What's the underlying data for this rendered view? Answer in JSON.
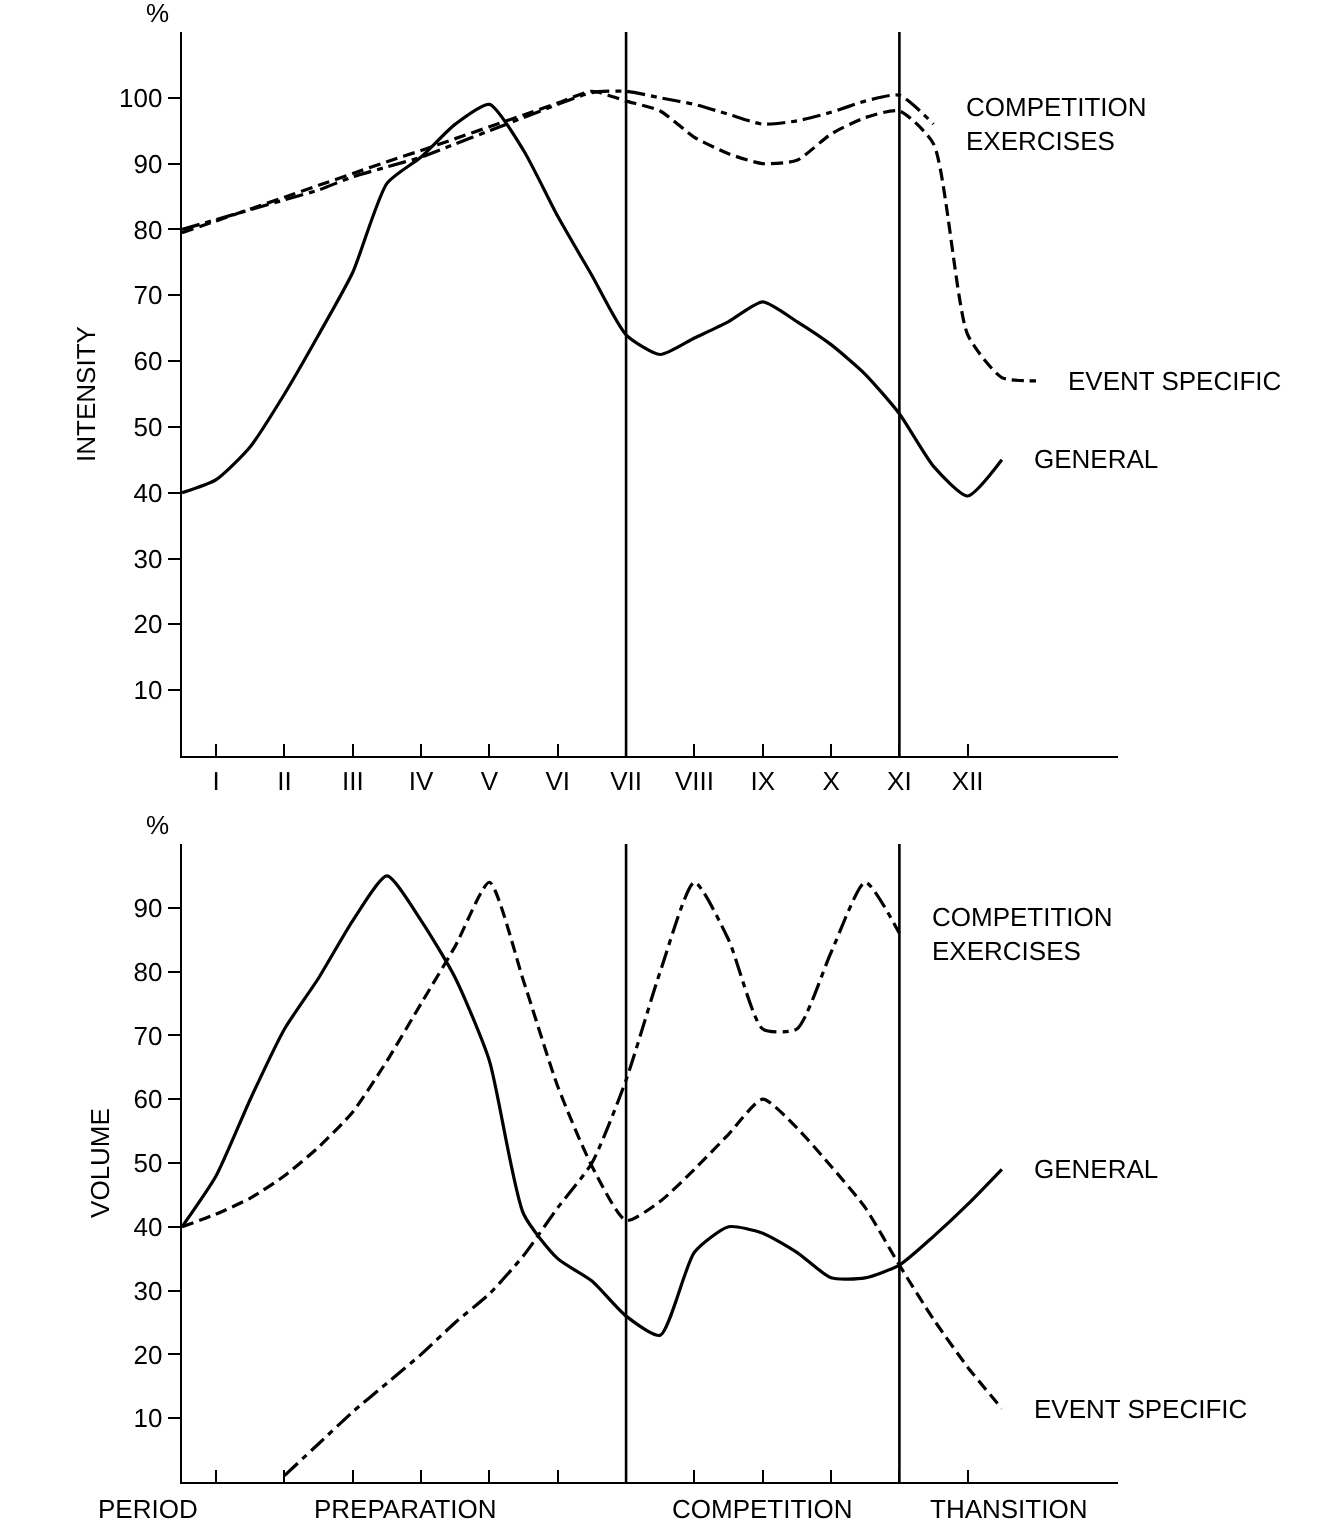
{
  "chart_data": [
    {
      "type": "line",
      "ylabel": "INTENSITY",
      "annotations": [
        "%"
      ],
      "ylim": [
        0,
        110
      ],
      "categories": [
        null,
        "I",
        null,
        "II",
        null,
        "III",
        null,
        "IV",
        null,
        "V",
        null,
        "VI",
        null,
        "VII",
        null,
        "VIII",
        null,
        "IX",
        null,
        "X",
        null,
        "XI",
        null,
        "XII",
        null,
        null,
        null,
        null
      ],
      "yticks": [
        10,
        20,
        30,
        40,
        50,
        60,
        70,
        80,
        90,
        100
      ],
      "grid": false,
      "legend": false,
      "marker": "none",
      "ref_lines": [
        {
          "axis": "x",
          "value": "VII",
          "color": "#000000"
        },
        {
          "axis": "x",
          "value": "XI",
          "color": "#000000"
        }
      ],
      "series": [
        {
          "name": "COMPETITION EXERCISES",
          "color": "#000000",
          "line_style": "dashdot",
          "values": [
            80,
            81.5,
            83,
            84.5,
            86,
            88,
            89.5,
            91,
            93,
            95,
            97,
            99,
            100.8,
            101,
            100,
            99,
            97.5,
            96,
            96.5,
            97.8,
            99.5,
            100.4,
            96,
            null,
            null,
            null,
            null,
            null
          ]
        },
        {
          "name": "EVENT SPECIFIC",
          "color": "#000000",
          "line_style": "dashed",
          "values": [
            79.5,
            81.3,
            83.1,
            84.9,
            86.7,
            88.5,
            90.3,
            92,
            93.8,
            95.6,
            97.4,
            99.2,
            101,
            99.5,
            98,
            94,
            91.5,
            90,
            90.5,
            94.5,
            97,
            98,
            93,
            64,
            57.5,
            57,
            null,
            null
          ]
        },
        {
          "name": "GENERAL",
          "color": "#000000",
          "line_style": "solid",
          "values": [
            40,
            42,
            47,
            55,
            64,
            73.5,
            87,
            91,
            96,
            99,
            92,
            82,
            73,
            64,
            61,
            63.5,
            66,
            69,
            66,
            62.5,
            58,
            52,
            44,
            39.5,
            45,
            null,
            null,
            null
          ]
        }
      ]
    },
    {
      "type": "line",
      "ylabel": "VOLUME",
      "annotations": [
        "%",
        "PERIOD",
        "PREPARATION",
        "COMPETITION",
        "THANSITION"
      ],
      "ylim": [
        0,
        100
      ],
      "tick_labels": "y",
      "categories": [
        null,
        "I",
        null,
        "II",
        null,
        "III",
        null,
        "IV",
        null,
        "V",
        null,
        "VI",
        null,
        "VII",
        null,
        "VIII",
        null,
        "IX",
        null,
        "X",
        null,
        "XI",
        null,
        "XII",
        null,
        null,
        null,
        null
      ],
      "yticks": [
        10,
        20,
        30,
        40,
        50,
        60,
        70,
        80,
        90
      ],
      "grid": false,
      "legend": false,
      "marker": "none",
      "ref_lines": [
        {
          "axis": "x",
          "value": "VII",
          "color": "#000000"
        },
        {
          "axis": "x",
          "value": "XI",
          "color": "#000000"
        }
      ],
      "series": [
        {
          "name": "COMPETITION EXERCISES",
          "color": "#000000",
          "line_style": "dashdot",
          "values": [
            null,
            null,
            null,
            1,
            6,
            11,
            15.5,
            20,
            25,
            29.5,
            35.5,
            43,
            50,
            63,
            80,
            94,
            85,
            71,
            71,
            83,
            94,
            86,
            null,
            null,
            null,
            null,
            null,
            null
          ]
        },
        {
          "name": "EVENT SPECIFIC",
          "color": "#000000",
          "line_style": "dashed",
          "values": [
            40,
            42,
            44.5,
            48,
            52.5,
            58,
            66,
            75,
            84,
            94,
            78.5,
            62,
            49.5,
            41,
            44,
            49,
            54.5,
            60,
            55.5,
            49.5,
            43,
            34,
            25.5,
            18,
            11.5,
            null,
            null,
            null
          ]
        },
        {
          "name": "GENERAL",
          "color": "#000000",
          "line_style": "solid",
          "values": [
            40,
            48,
            60,
            71,
            79,
            88,
            95,
            88,
            79,
            66,
            42,
            35,
            31.5,
            26,
            23,
            36,
            40,
            39,
            36,
            32,
            32,
            34,
            38.5,
            43.5,
            49,
            null,
            null,
            null
          ]
        }
      ]
    }
  ]
}
